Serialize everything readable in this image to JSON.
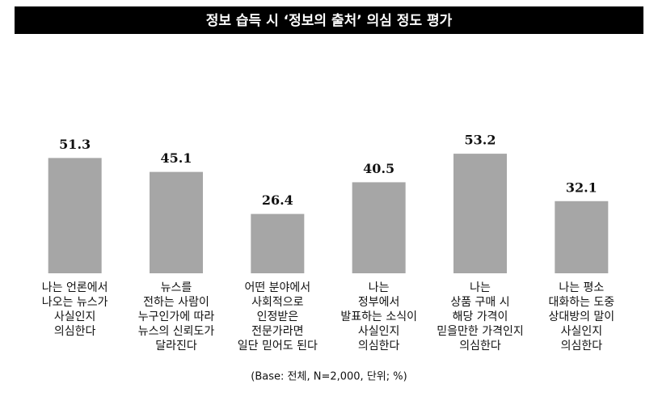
{
  "chart_data": {
    "type": "bar",
    "title": "정보 습득 시 ‘정보의 출처’ 의심 정도 평가",
    "categories": [
      [
        "나는 언론에서",
        "나오는 뉴스가",
        "사실인지",
        "의심한다"
      ],
      [
        "뉴스를",
        "전하는 사람이",
        "누구인가에 따라",
        "뉴스의 신뢰도가",
        "달라진다"
      ],
      [
        "어떤 분야에서",
        "사회적으로",
        "인정받은",
        "전문가라면",
        "일단 믿어도 된다"
      ],
      [
        "나는",
        "정부에서",
        "발표하는 소식이",
        "사실인지",
        "의심한다"
      ],
      [
        "나는",
        "상품 구매 시",
        "해당 가격이",
        "믿을만한 가격인지",
        "의심한다"
      ],
      [
        "나는 평소",
        "대화하는 도중",
        "상대방의 말이",
        "사실인지",
        "의심한다"
      ]
    ],
    "values": [
      51.3,
      45.1,
      26.4,
      40.5,
      53.2,
      32.1
    ],
    "color": "#a6a6a6",
    "note": "(Base: 전체, N=2,000, 단위; %)"
  }
}
